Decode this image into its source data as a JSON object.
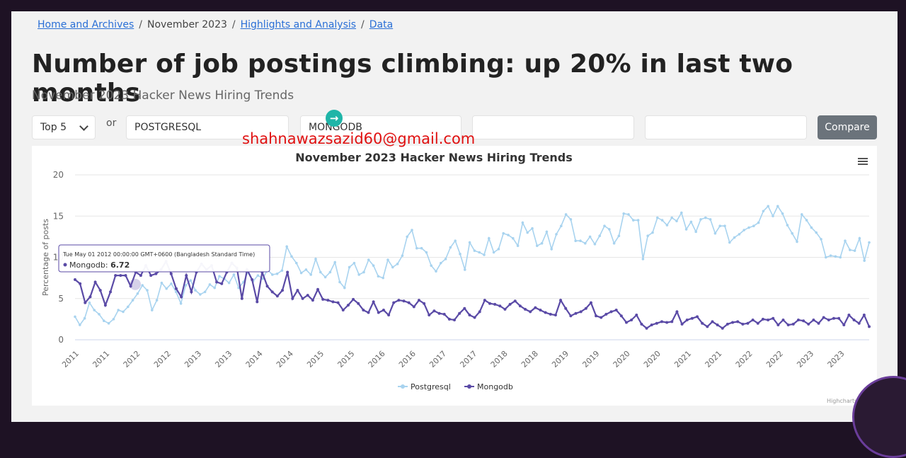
{
  "breadcrumb": {
    "home": "Home and Archives",
    "month": "November 2023",
    "highlights": "Highlights and Analysis",
    "data": "Data",
    "separator": "/"
  },
  "title": "Number of job postings climbing: up 20% in last two months",
  "subtitle": "November 2023 Hacker News Hiring Trends",
  "controls": {
    "select_value": "Top 5",
    "or_label": "or",
    "input1_value": "POSTGRESQL",
    "input2_value": "MONGODB",
    "input3_value": "",
    "input4_value": "",
    "compare_label": "Compare"
  },
  "overlay_email": "shahnawazsazid60@gmail.com",
  "tooltip": {
    "date": "Tue May 01 2012 00:00:00 GMT+0600 (Bangladesh Standard Time)",
    "series": "Mongodb",
    "value": "6.72"
  },
  "credits": "Highcharts",
  "chart_data": {
    "type": "line",
    "title": "November 2023 Hacker News Hiring Trends",
    "ylabel": "Percentage of posts",
    "ylim": [
      0,
      20
    ],
    "yticks": [
      0,
      5,
      10,
      15,
      20
    ],
    "xticks": [
      "2011",
      "2011",
      "2012",
      "2012",
      "2013",
      "2013",
      "2014",
      "2014",
      "2015",
      "2015",
      "2016",
      "2016",
      "2017",
      "2017",
      "2018",
      "2018",
      "2019",
      "2019",
      "2020",
      "2020",
      "2021",
      "2021",
      "2022",
      "2022",
      "2023",
      "2023"
    ],
    "legend": "bottom-center",
    "grid": true,
    "series": [
      {
        "name": "Postgresql",
        "color": "#a8d3ef",
        "values": [
          2.8,
          1.8,
          2.6,
          4.5,
          3.6,
          3.1,
          2.3,
          2.0,
          2.5,
          3.6,
          3.4,
          4.0,
          4.8,
          5.6,
          6.6,
          6.0,
          3.6,
          4.8,
          6.9,
          6.2,
          6.8,
          5.8,
          4.4,
          6.6,
          7.2,
          6.0,
          5.5,
          5.8,
          6.7,
          6.3,
          7.7,
          7.4,
          6.9,
          7.9,
          6.3,
          7.0,
          8.3,
          7.1,
          7.8,
          7.4,
          8.5,
          7.9,
          8.0,
          8.4,
          11.3,
          10.1,
          9.3,
          8.1,
          8.5,
          7.9,
          9.8,
          8.2,
          7.6,
          8.2,
          9.4,
          7.0,
          6.3,
          8.8,
          9.3,
          7.9,
          8.2,
          9.7,
          9.0,
          7.7,
          7.5,
          9.7,
          8.8,
          9.2,
          10.2,
          12.5,
          13.3,
          11.1,
          11.1,
          10.6,
          9.0,
          8.3,
          9.3,
          9.8,
          11.2,
          12.0,
          10.4,
          8.5,
          11.8,
          10.8,
          10.6,
          10.3,
          12.3,
          10.6,
          11.0,
          12.9,
          12.7,
          12.3,
          11.4,
          14.2,
          13.0,
          13.5,
          11.4,
          11.7,
          13.1,
          11.0,
          12.8,
          13.8,
          15.2,
          14.6,
          12.0,
          12.0,
          11.7,
          12.5,
          11.6,
          12.6,
          13.8,
          13.4,
          11.7,
          12.6,
          15.3,
          15.2,
          14.5,
          14.5,
          9.8,
          12.6,
          13.0,
          14.8,
          14.5,
          13.9,
          14.8,
          14.4,
          15.4,
          13.4,
          14.3,
          13.1,
          14.6,
          14.8,
          14.6,
          12.9,
          13.8,
          13.8,
          11.8,
          12.4,
          12.8,
          13.3,
          13.6,
          13.8,
          14.2,
          15.6,
          16.2,
          15.0,
          16.2,
          15.3,
          13.9,
          12.9,
          11.9,
          15.2,
          14.5,
          13.6,
          13.0,
          12.2,
          10.0,
          10.2,
          10.1,
          10.0,
          12.0,
          10.9,
          10.8,
          12.3,
          9.6,
          11.8
        ]
      },
      {
        "name": "Mongodb",
        "color": "#5a4aa6",
        "values": [
          7.3,
          6.8,
          4.5,
          5.2,
          7.0,
          6.0,
          4.2,
          5.8,
          7.8,
          7.8,
          7.8,
          6.5,
          8.2,
          7.8,
          9.0,
          7.8,
          8.0,
          8.5,
          9.5,
          8.0,
          6.2,
          5.2,
          7.8,
          5.8,
          8.2,
          9.2,
          8.5,
          9.0,
          7.0,
          6.8,
          8.2,
          9.3,
          8.7,
          5.0,
          8.5,
          7.3,
          4.6,
          8.2,
          6.5,
          5.8,
          5.3,
          6.0,
          8.2,
          5.0,
          6.0,
          5.0,
          5.4,
          4.8,
          6.1,
          4.9,
          4.8,
          4.6,
          4.5,
          3.6,
          4.2,
          4.9,
          4.4,
          3.6,
          3.3,
          4.6,
          3.3,
          3.6,
          3.0,
          4.5,
          4.8,
          4.7,
          4.5,
          4.0,
          4.8,
          4.4,
          3.0,
          3.5,
          3.2,
          3.1,
          2.5,
          2.4,
          3.2,
          3.8,
          3.0,
          2.7,
          3.4,
          4.8,
          4.4,
          4.3,
          4.1,
          3.7,
          4.3,
          4.7,
          4.1,
          3.7,
          3.4,
          3.9,
          3.6,
          3.3,
          3.1,
          3.0,
          4.8,
          3.8,
          2.9,
          3.2,
          3.4,
          3.8,
          4.5,
          2.9,
          2.7,
          3.1,
          3.4,
          3.6,
          2.9,
          2.1,
          2.4,
          3.0,
          1.9,
          1.4,
          1.8,
          2.0,
          2.2,
          2.1,
          2.2,
          3.4,
          1.9,
          2.4,
          2.6,
          2.8,
          2.0,
          1.6,
          2.2,
          1.8,
          1.4,
          1.9,
          2.1,
          2.2,
          1.9,
          2.0,
          2.4,
          2.0,
          2.5,
          2.4,
          2.6,
          1.8,
          2.4,
          1.8,
          1.9,
          2.4,
          2.3,
          1.9,
          2.4,
          2.0,
          2.7,
          2.4,
          2.6,
          2.6,
          1.8,
          3.0,
          2.4,
          2.0,
          3.0,
          1.6
        ]
      }
    ]
  }
}
